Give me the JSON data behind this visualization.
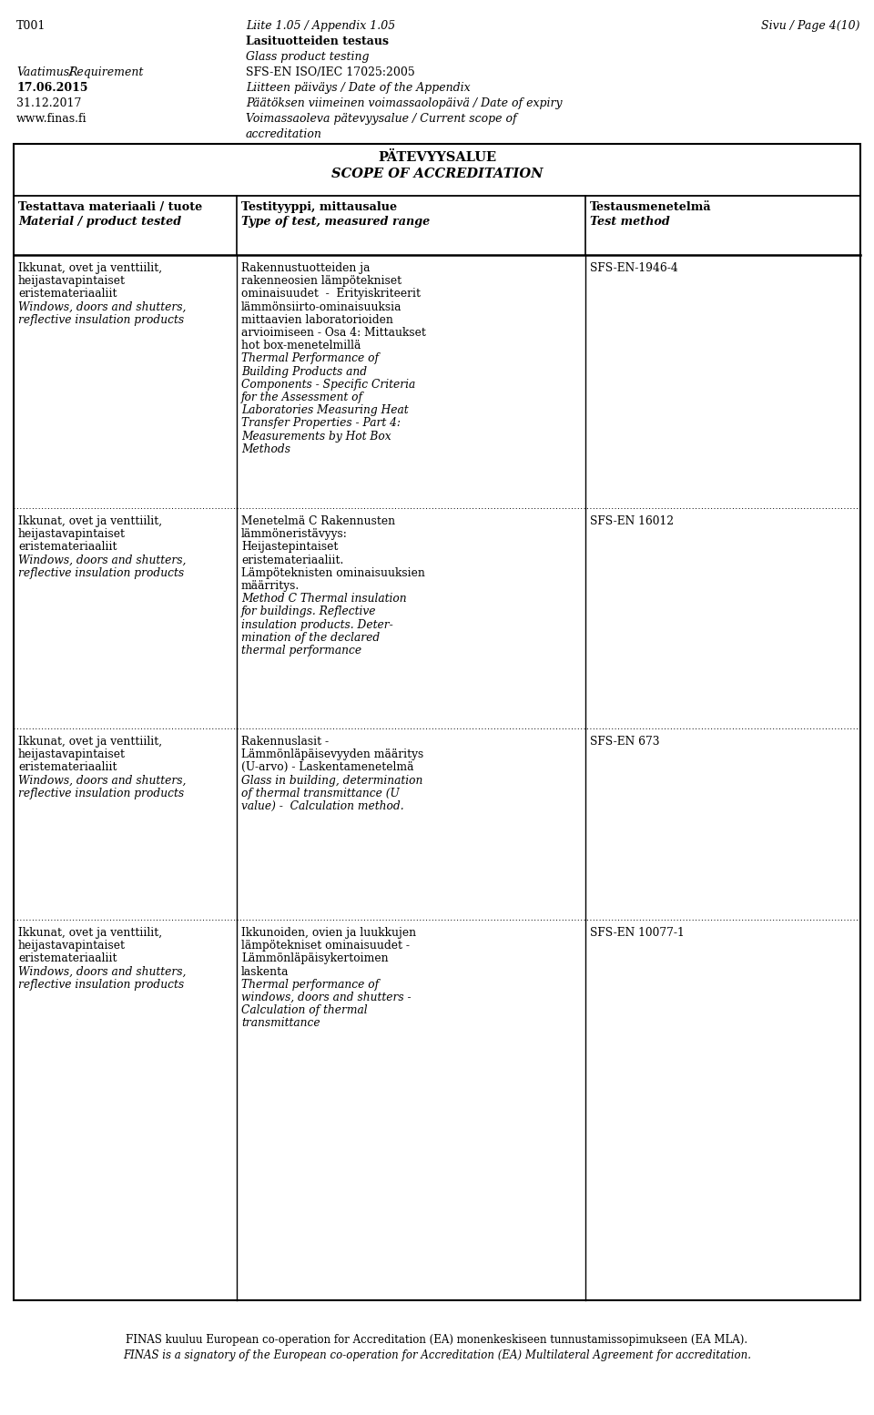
{
  "page_width": 9.6,
  "page_height": 15.54,
  "bg_color": "#ffffff",
  "header": {
    "t001": "T001",
    "center_line1": "Liite 1.05 / ",
    "center_line1b": "Appendix 1.05",
    "center_line2_bold": "Lasituotteiden testaus",
    "center_line3_italic": "Glass product testing",
    "right": "Sivu / ",
    "right2": "Page 4(10)",
    "row2_label_italic": "Vaatimus/",
    "row2_label_normal": "Requirement",
    "row2_value": "SFS-EN ISO/IEC 17025:2005",
    "row3_label_bold": "17.06.2015",
    "row3_value_italic": "Liitteen päiväys / ",
    "row3_value_italic2": "Date of the Appendix",
    "row4_label": "31.12.2017",
    "row4_value_italic": "Päätöksen viimeinen voimassaolopäivä / ",
    "row4_value_italic2": "Date of expiry",
    "row5_label": "www.finas.fi",
    "row5_value_italic": "Voimassaoleva pätevyysalue / ",
    "row5_value_italic2": "Current scope of",
    "row5_value_italic3": "accreditation"
  },
  "table_title_line1": "PÄTEVYYSALUE",
  "table_title_line2": "SCOPE OF ACCREDITATION",
  "col_headers": [
    [
      "Testattava materiaali / tuote",
      "Material / product tested"
    ],
    [
      "Testityyppi, mittausalue",
      "Type of test, measured range"
    ],
    [
      "Testausmenetelmä",
      "Test method"
    ]
  ],
  "rows": [
    {
      "col1_normal": [
        "Ikkunat, ovet ja venttiilit,",
        "heijastavapintaiset",
        "eristemateriaaliit"
      ],
      "col1_italic": [
        "Windows, doors and shutters,",
        "reflective insulation products"
      ],
      "col2_normal": [
        "Rakennustuotteiden ja",
        "rakenneosien lämpötekniset",
        "ominaisuudet  -  Erityiskriteerit",
        "lämmönsiirto-ominaisuuksia",
        "mittaavien laboratorioiden",
        "arvioimiseen - Osa 4: Mittaukset",
        "hot box-menetelmillä"
      ],
      "col2_italic": [
        "Thermal Performance of",
        "Building Products and",
        "Components - Specific Criteria",
        "for the Assessment of",
        "Laboratories Measuring Heat",
        "Transfer Properties - Part 4:",
        "Measurements by Hot Box",
        "Methods"
      ],
      "col3": "SFS-EN-1946-4"
    },
    {
      "col1_normal": [
        "Ikkunat, ovet ja venttiilit,",
        "heijastavapintaiset",
        "eristemateriaaliit"
      ],
      "col1_italic": [
        "Windows, doors and shutters,",
        "reflective insulation products"
      ],
      "col2_normal": [
        "Menetelmä C Rakennusten",
        "lämmöneristävyys:",
        "Heijastepintaiset",
        "eristemateriaaliit.",
        "Lämpöteknisten ominaisuuksien",
        "määrritys."
      ],
      "col2_italic": [
        "Method C Thermal insulation",
        "for buildings. Reflective",
        "insulation products. Deter-",
        "mination of the declared",
        "thermal performance"
      ],
      "col3": "SFS-EN 16012"
    },
    {
      "col1_normal": [
        "Ikkunat, ovet ja venttiilit,",
        "heijastavapintaiset",
        "eristemateriaaliit"
      ],
      "col1_italic": [
        "Windows, doors and shutters,",
        "reflective insulation products"
      ],
      "col2_normal": [
        "Rakennuslasit -",
        "Lämmönläpäisevyyden määritys",
        "(U-arvo) - Laskentamenetelmä"
      ],
      "col2_italic": [
        "Glass in building, determination",
        "of thermal transmittance (U",
        "value) -  Calculation method."
      ],
      "col3": "SFS-EN 673"
    },
    {
      "col1_normal": [
        "Ikkunat, ovet ja venttiilit,",
        "heijastavapintaiset",
        "eristemateriaaliit"
      ],
      "col1_italic": [
        "Windows, doors and shutters,",
        "reflective insulation products"
      ],
      "col2_normal": [
        "Ikkunoiden, ovien ja luukkujen",
        "lämpötekniset ominaisuudet -",
        "Lämmönläpäisykertoimen",
        "laskenta"
      ],
      "col2_italic": [
        "Thermal performance of",
        "windows, doors and shutters -",
        "Calculation of thermal",
        "transmittance"
      ],
      "col3": "SFS-EN 10077-1"
    }
  ],
  "footer_line1": "FINAS kuuluu European co-operation for Accreditation (EA) monenkeskiseen tunnustamissopimukseen (EA MLA).",
  "footer_line2": "FINAS is a signatory of the European co-operation for Accreditation (EA) Multilateral Agreement for accreditation."
}
